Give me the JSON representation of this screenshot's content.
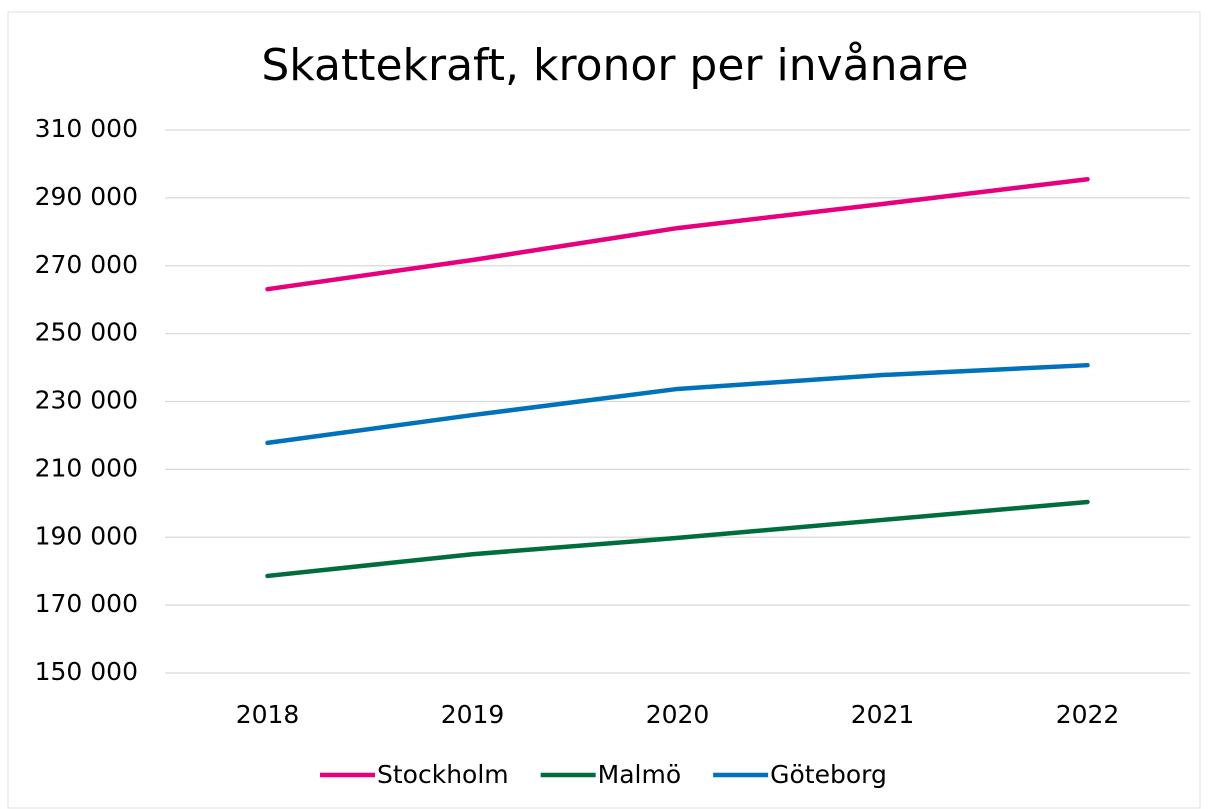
{
  "chart_data": {
    "type": "line",
    "title": "Skattekraft, kronor per invånare",
    "categories": [
      "2018",
      "2019",
      "2020",
      "2021",
      "2022"
    ],
    "series": [
      {
        "name": "Stockholm",
        "color": "#e6007e",
        "values": [
          263100,
          271700,
          281100,
          288200,
          295500
        ]
      },
      {
        "name": "Malmö",
        "color": "#006e3c",
        "values": [
          178600,
          185000,
          189800,
          195100,
          200400
        ]
      },
      {
        "name": "Göteborg",
        "color": "#0072b9",
        "values": [
          217800,
          226000,
          233700,
          237800,
          240700
        ]
      }
    ],
    "ylim": [
      150000,
      310000
    ],
    "yticks": [
      {
        "value": 150000,
        "label": "150 000"
      },
      {
        "value": 170000,
        "label": "170 000"
      },
      {
        "value": 190000,
        "label": "190 000"
      },
      {
        "value": 210000,
        "label": "210 000"
      },
      {
        "value": 230000,
        "label": "230 000"
      },
      {
        "value": 250000,
        "label": "250 000"
      },
      {
        "value": 270000,
        "label": "270 000"
      },
      {
        "value": 290000,
        "label": "290 000"
      },
      {
        "value": 310000,
        "label": "310 000"
      }
    ],
    "grid": true,
    "legend": "bottom"
  }
}
